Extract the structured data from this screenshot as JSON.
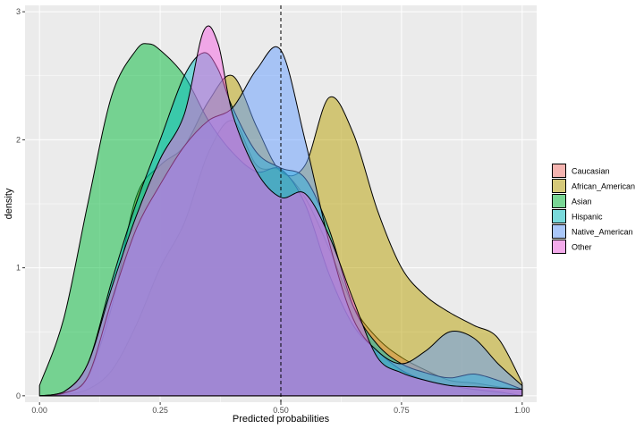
{
  "chart_data": {
    "type": "area",
    "subtype": "density",
    "title": "",
    "xlabel": "Predicted probabilities",
    "ylabel": "density",
    "xlim": [
      -0.03,
      1.03
    ],
    "ylim": [
      -0.05,
      3.05
    ],
    "x_ticks": [
      {
        "value": 0.0,
        "label": "0.00"
      },
      {
        "value": 0.25,
        "label": "0.25"
      },
      {
        "value": 0.5,
        "label": "0.50"
      },
      {
        "value": 0.75,
        "label": "0.75"
      },
      {
        "value": 1.0,
        "label": "1.00"
      }
    ],
    "y_ticks": [
      {
        "value": 0,
        "label": "0"
      },
      {
        "value": 1,
        "label": "1"
      },
      {
        "value": 2,
        "label": "2"
      },
      {
        "value": 3,
        "label": "3"
      }
    ],
    "vline": {
      "x": 0.5,
      "style": "dashed"
    },
    "grid": true,
    "legend_position": "right",
    "series": [
      {
        "name": "Caucasian",
        "color": "#F8766D",
        "x": [
          0.0,
          0.05,
          0.1,
          0.15,
          0.2,
          0.25,
          0.3,
          0.35,
          0.4,
          0.45,
          0.5,
          0.55,
          0.6,
          0.65,
          0.7,
          0.75,
          0.8,
          0.85,
          0.9,
          0.95,
          1.0
        ],
        "y": [
          0.0,
          0.01,
          0.05,
          0.2,
          0.55,
          1.0,
          1.35,
          1.9,
          2.15,
          1.8,
          1.76,
          1.55,
          1.15,
          0.7,
          0.45,
          0.3,
          0.2,
          0.12,
          0.1,
          0.07,
          0.05
        ]
      },
      {
        "name": "African_American",
        "color": "#B79F00",
        "x": [
          0.0,
          0.05,
          0.1,
          0.15,
          0.2,
          0.25,
          0.3,
          0.35,
          0.4,
          0.45,
          0.5,
          0.55,
          0.6,
          0.65,
          0.7,
          0.75,
          0.8,
          0.85,
          0.9,
          0.95,
          1.0
        ],
        "y": [
          0.0,
          0.02,
          0.15,
          0.7,
          1.55,
          1.8,
          1.95,
          2.3,
          2.5,
          2.1,
          1.75,
          1.8,
          2.33,
          2.05,
          1.45,
          1.0,
          0.78,
          0.65,
          0.55,
          0.45,
          0.1
        ]
      },
      {
        "name": "Asian",
        "color": "#00BA38",
        "x": [
          0.0,
          0.05,
          0.1,
          0.15,
          0.2,
          0.225,
          0.25,
          0.3,
          0.35,
          0.4,
          0.45,
          0.5,
          0.55,
          0.6,
          0.65,
          0.7,
          0.75,
          0.8,
          0.85,
          0.9,
          0.95,
          1.0
        ],
        "y": [
          0.08,
          0.6,
          1.5,
          2.35,
          2.7,
          2.75,
          2.7,
          2.5,
          2.15,
          1.9,
          1.75,
          1.77,
          1.5,
          0.95,
          0.55,
          0.35,
          0.2,
          0.12,
          0.08,
          0.05,
          0.03,
          0.0
        ]
      },
      {
        "name": "Hispanic",
        "color": "#00BFC4",
        "x": [
          0.0,
          0.05,
          0.1,
          0.15,
          0.2,
          0.25,
          0.3,
          0.34,
          0.37,
          0.4,
          0.45,
          0.5,
          0.55,
          0.6,
          0.65,
          0.7,
          0.75,
          0.8,
          0.85,
          0.9,
          0.95,
          1.0
        ],
        "y": [
          0.0,
          0.03,
          0.25,
          0.9,
          1.5,
          2.0,
          2.5,
          2.68,
          2.55,
          2.25,
          1.9,
          1.78,
          1.7,
          1.3,
          0.7,
          0.4,
          0.25,
          0.18,
          0.14,
          0.17,
          0.12,
          0.05
        ]
      },
      {
        "name": "Native_American",
        "color": "#619CFF",
        "x": [
          0.0,
          0.05,
          0.1,
          0.15,
          0.2,
          0.25,
          0.3,
          0.35,
          0.4,
          0.45,
          0.5,
          0.55,
          0.6,
          0.65,
          0.7,
          0.75,
          0.8,
          0.85,
          0.9,
          0.95,
          1.0
        ],
        "y": [
          0.0,
          0.02,
          0.15,
          0.75,
          1.3,
          1.65,
          1.95,
          2.15,
          2.25,
          2.55,
          2.7,
          2.0,
          1.2,
          0.6,
          0.35,
          0.25,
          0.35,
          0.5,
          0.45,
          0.25,
          0.08
        ]
      },
      {
        "name": "Other",
        "color": "#F564E3",
        "x": [
          0.0,
          0.05,
          0.1,
          0.15,
          0.2,
          0.25,
          0.3,
          0.34,
          0.37,
          0.4,
          0.45,
          0.5,
          0.55,
          0.6,
          0.65,
          0.7,
          0.75,
          0.8,
          0.85,
          0.9,
          0.95,
          1.0
        ],
        "y": [
          0.0,
          0.03,
          0.25,
          0.85,
          1.4,
          1.85,
          2.2,
          2.85,
          2.75,
          2.2,
          1.75,
          1.55,
          1.58,
          1.25,
          0.75,
          0.3,
          0.18,
          0.12,
          0.08,
          0.07,
          0.06,
          0.05
        ]
      }
    ]
  }
}
